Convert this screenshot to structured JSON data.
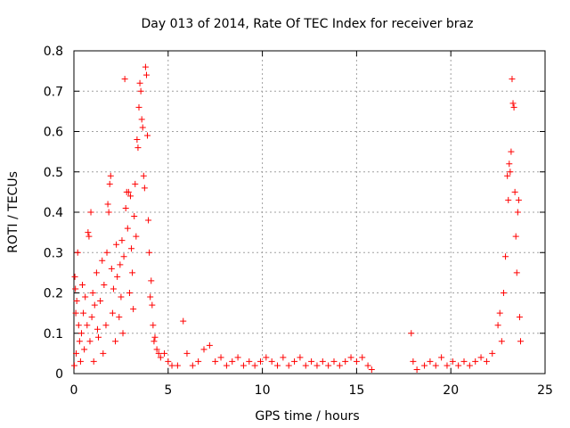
{
  "chart_data": {
    "type": "scatter",
    "title": "Day 013 of 2014, Rate Of TEC Index for receiver braz",
    "xlabel": "GPS time / hours",
    "ylabel": "ROTI / TECUs",
    "xlim": [
      0,
      25
    ],
    "ylim": [
      0,
      0.8
    ],
    "xticks": [
      0,
      5,
      10,
      15,
      20,
      25
    ],
    "xtick_labels": [
      "0",
      "5",
      "10",
      "15",
      "20",
      "25"
    ],
    "yticks": [
      0,
      0.1,
      0.2,
      0.3,
      0.4,
      0.5,
      0.6,
      0.7,
      0.8
    ],
    "ytick_labels": [
      "0",
      "0.1",
      "0.2",
      "0.3",
      "0.4",
      "0.5",
      "0.6",
      "0.7",
      "0.8"
    ],
    "grid": true,
    "marker": "+",
    "color": "#ff0000",
    "series": [
      {
        "name": "ROTI",
        "points": [
          [
            0.02,
            0.02
          ],
          [
            0.05,
            0.24
          ],
          [
            0.08,
            0.21
          ],
          [
            0.1,
            0.15
          ],
          [
            0.12,
            0.05
          ],
          [
            0.15,
            0.18
          ],
          [
            0.2,
            0.3
          ],
          [
            0.25,
            0.12
          ],
          [
            0.3,
            0.08
          ],
          [
            0.35,
            0.03
          ],
          [
            0.4,
            0.1
          ],
          [
            0.45,
            0.22
          ],
          [
            0.5,
            0.15
          ],
          [
            0.55,
            0.06
          ],
          [
            0.6,
            0.19
          ],
          [
            0.7,
            0.12
          ],
          [
            0.75,
            0.35
          ],
          [
            0.8,
            0.34
          ],
          [
            0.85,
            0.08
          ],
          [
            0.9,
            0.4
          ],
          [
            0.95,
            0.14
          ],
          [
            1.0,
            0.2
          ],
          [
            1.05,
            0.03
          ],
          [
            1.1,
            0.17
          ],
          [
            1.2,
            0.25
          ],
          [
            1.25,
            0.11
          ],
          [
            1.3,
            0.09
          ],
          [
            1.4,
            0.18
          ],
          [
            1.5,
            0.28
          ],
          [
            1.55,
            0.05
          ],
          [
            1.6,
            0.22
          ],
          [
            1.7,
            0.12
          ],
          [
            1.75,
            0.3
          ],
          [
            1.8,
            0.42
          ],
          [
            1.85,
            0.4
          ],
          [
            1.9,
            0.47
          ],
          [
            1.95,
            0.49
          ],
          [
            2.0,
            0.26
          ],
          [
            2.05,
            0.15
          ],
          [
            2.1,
            0.21
          ],
          [
            2.2,
            0.08
          ],
          [
            2.25,
            0.32
          ],
          [
            2.3,
            0.24
          ],
          [
            2.4,
            0.14
          ],
          [
            2.45,
            0.27
          ],
          [
            2.5,
            0.19
          ],
          [
            2.55,
            0.33
          ],
          [
            2.6,
            0.1
          ],
          [
            2.65,
            0.29
          ],
          [
            2.7,
            0.73
          ],
          [
            2.75,
            0.41
          ],
          [
            2.8,
            0.45
          ],
          [
            2.85,
            0.36
          ],
          [
            2.9,
            0.45
          ],
          [
            2.95,
            0.2
          ],
          [
            3.0,
            0.44
          ],
          [
            3.05,
            0.31
          ],
          [
            3.1,
            0.25
          ],
          [
            3.15,
            0.16
          ],
          [
            3.2,
            0.39
          ],
          [
            3.25,
            0.47
          ],
          [
            3.3,
            0.34
          ],
          [
            3.35,
            0.58
          ],
          [
            3.4,
            0.56
          ],
          [
            3.45,
            0.66
          ],
          [
            3.5,
            0.72
          ],
          [
            3.55,
            0.7
          ],
          [
            3.6,
            0.63
          ],
          [
            3.65,
            0.61
          ],
          [
            3.7,
            0.49
          ],
          [
            3.75,
            0.46
          ],
          [
            3.8,
            0.76
          ],
          [
            3.85,
            0.74
          ],
          [
            3.9,
            0.59
          ],
          [
            3.95,
            0.38
          ],
          [
            4.0,
            0.3
          ],
          [
            4.05,
            0.19
          ],
          [
            4.1,
            0.23
          ],
          [
            4.15,
            0.17
          ],
          [
            4.2,
            0.12
          ],
          [
            4.25,
            0.08
          ],
          [
            4.3,
            0.09
          ],
          [
            4.4,
            0.06
          ],
          [
            4.5,
            0.05
          ],
          [
            4.6,
            0.04
          ],
          [
            4.8,
            0.05
          ],
          [
            5.0,
            0.03
          ],
          [
            5.2,
            0.02
          ],
          [
            5.5,
            0.02
          ],
          [
            5.8,
            0.13
          ],
          [
            6.0,
            0.05
          ],
          [
            6.3,
            0.02
          ],
          [
            6.6,
            0.03
          ],
          [
            6.9,
            0.06
          ],
          [
            7.2,
            0.07
          ],
          [
            7.5,
            0.03
          ],
          [
            7.8,
            0.04
          ],
          [
            8.1,
            0.02
          ],
          [
            8.4,
            0.03
          ],
          [
            8.7,
            0.04
          ],
          [
            9.0,
            0.02
          ],
          [
            9.3,
            0.03
          ],
          [
            9.6,
            0.02
          ],
          [
            9.9,
            0.03
          ],
          [
            10.2,
            0.04
          ],
          [
            10.5,
            0.03
          ],
          [
            10.8,
            0.02
          ],
          [
            11.1,
            0.04
          ],
          [
            11.4,
            0.02
          ],
          [
            11.7,
            0.03
          ],
          [
            12.0,
            0.04
          ],
          [
            12.3,
            0.02
          ],
          [
            12.6,
            0.03
          ],
          [
            12.9,
            0.02
          ],
          [
            13.2,
            0.03
          ],
          [
            13.5,
            0.02
          ],
          [
            13.8,
            0.03
          ],
          [
            14.1,
            0.02
          ],
          [
            14.4,
            0.03
          ],
          [
            14.7,
            0.04
          ],
          [
            15.0,
            0.03
          ],
          [
            15.3,
            0.04
          ],
          [
            15.6,
            0.02
          ],
          [
            15.8,
            0.01
          ],
          [
            17.9,
            0.1
          ],
          [
            18.0,
            0.03
          ],
          [
            18.2,
            0.01
          ],
          [
            18.6,
            0.02
          ],
          [
            18.9,
            0.03
          ],
          [
            19.2,
            0.02
          ],
          [
            19.5,
            0.04
          ],
          [
            19.8,
            0.02
          ],
          [
            20.1,
            0.03
          ],
          [
            20.4,
            0.02
          ],
          [
            20.7,
            0.03
          ],
          [
            21.0,
            0.02
          ],
          [
            21.3,
            0.03
          ],
          [
            21.6,
            0.04
          ],
          [
            21.9,
            0.03
          ],
          [
            22.2,
            0.05
          ],
          [
            22.5,
            0.12
          ],
          [
            22.6,
            0.15
          ],
          [
            22.7,
            0.08
          ],
          [
            22.8,
            0.2
          ],
          [
            22.9,
            0.29
          ],
          [
            23.0,
            0.49
          ],
          [
            23.05,
            0.43
          ],
          [
            23.1,
            0.52
          ],
          [
            23.15,
            0.5
          ],
          [
            23.2,
            0.55
          ],
          [
            23.25,
            0.73
          ],
          [
            23.3,
            0.67
          ],
          [
            23.35,
            0.66
          ],
          [
            23.4,
            0.45
          ],
          [
            23.45,
            0.34
          ],
          [
            23.5,
            0.25
          ],
          [
            23.55,
            0.4
          ],
          [
            23.6,
            0.43
          ],
          [
            23.65,
            0.14
          ],
          [
            23.7,
            0.08
          ]
        ]
      }
    ]
  }
}
